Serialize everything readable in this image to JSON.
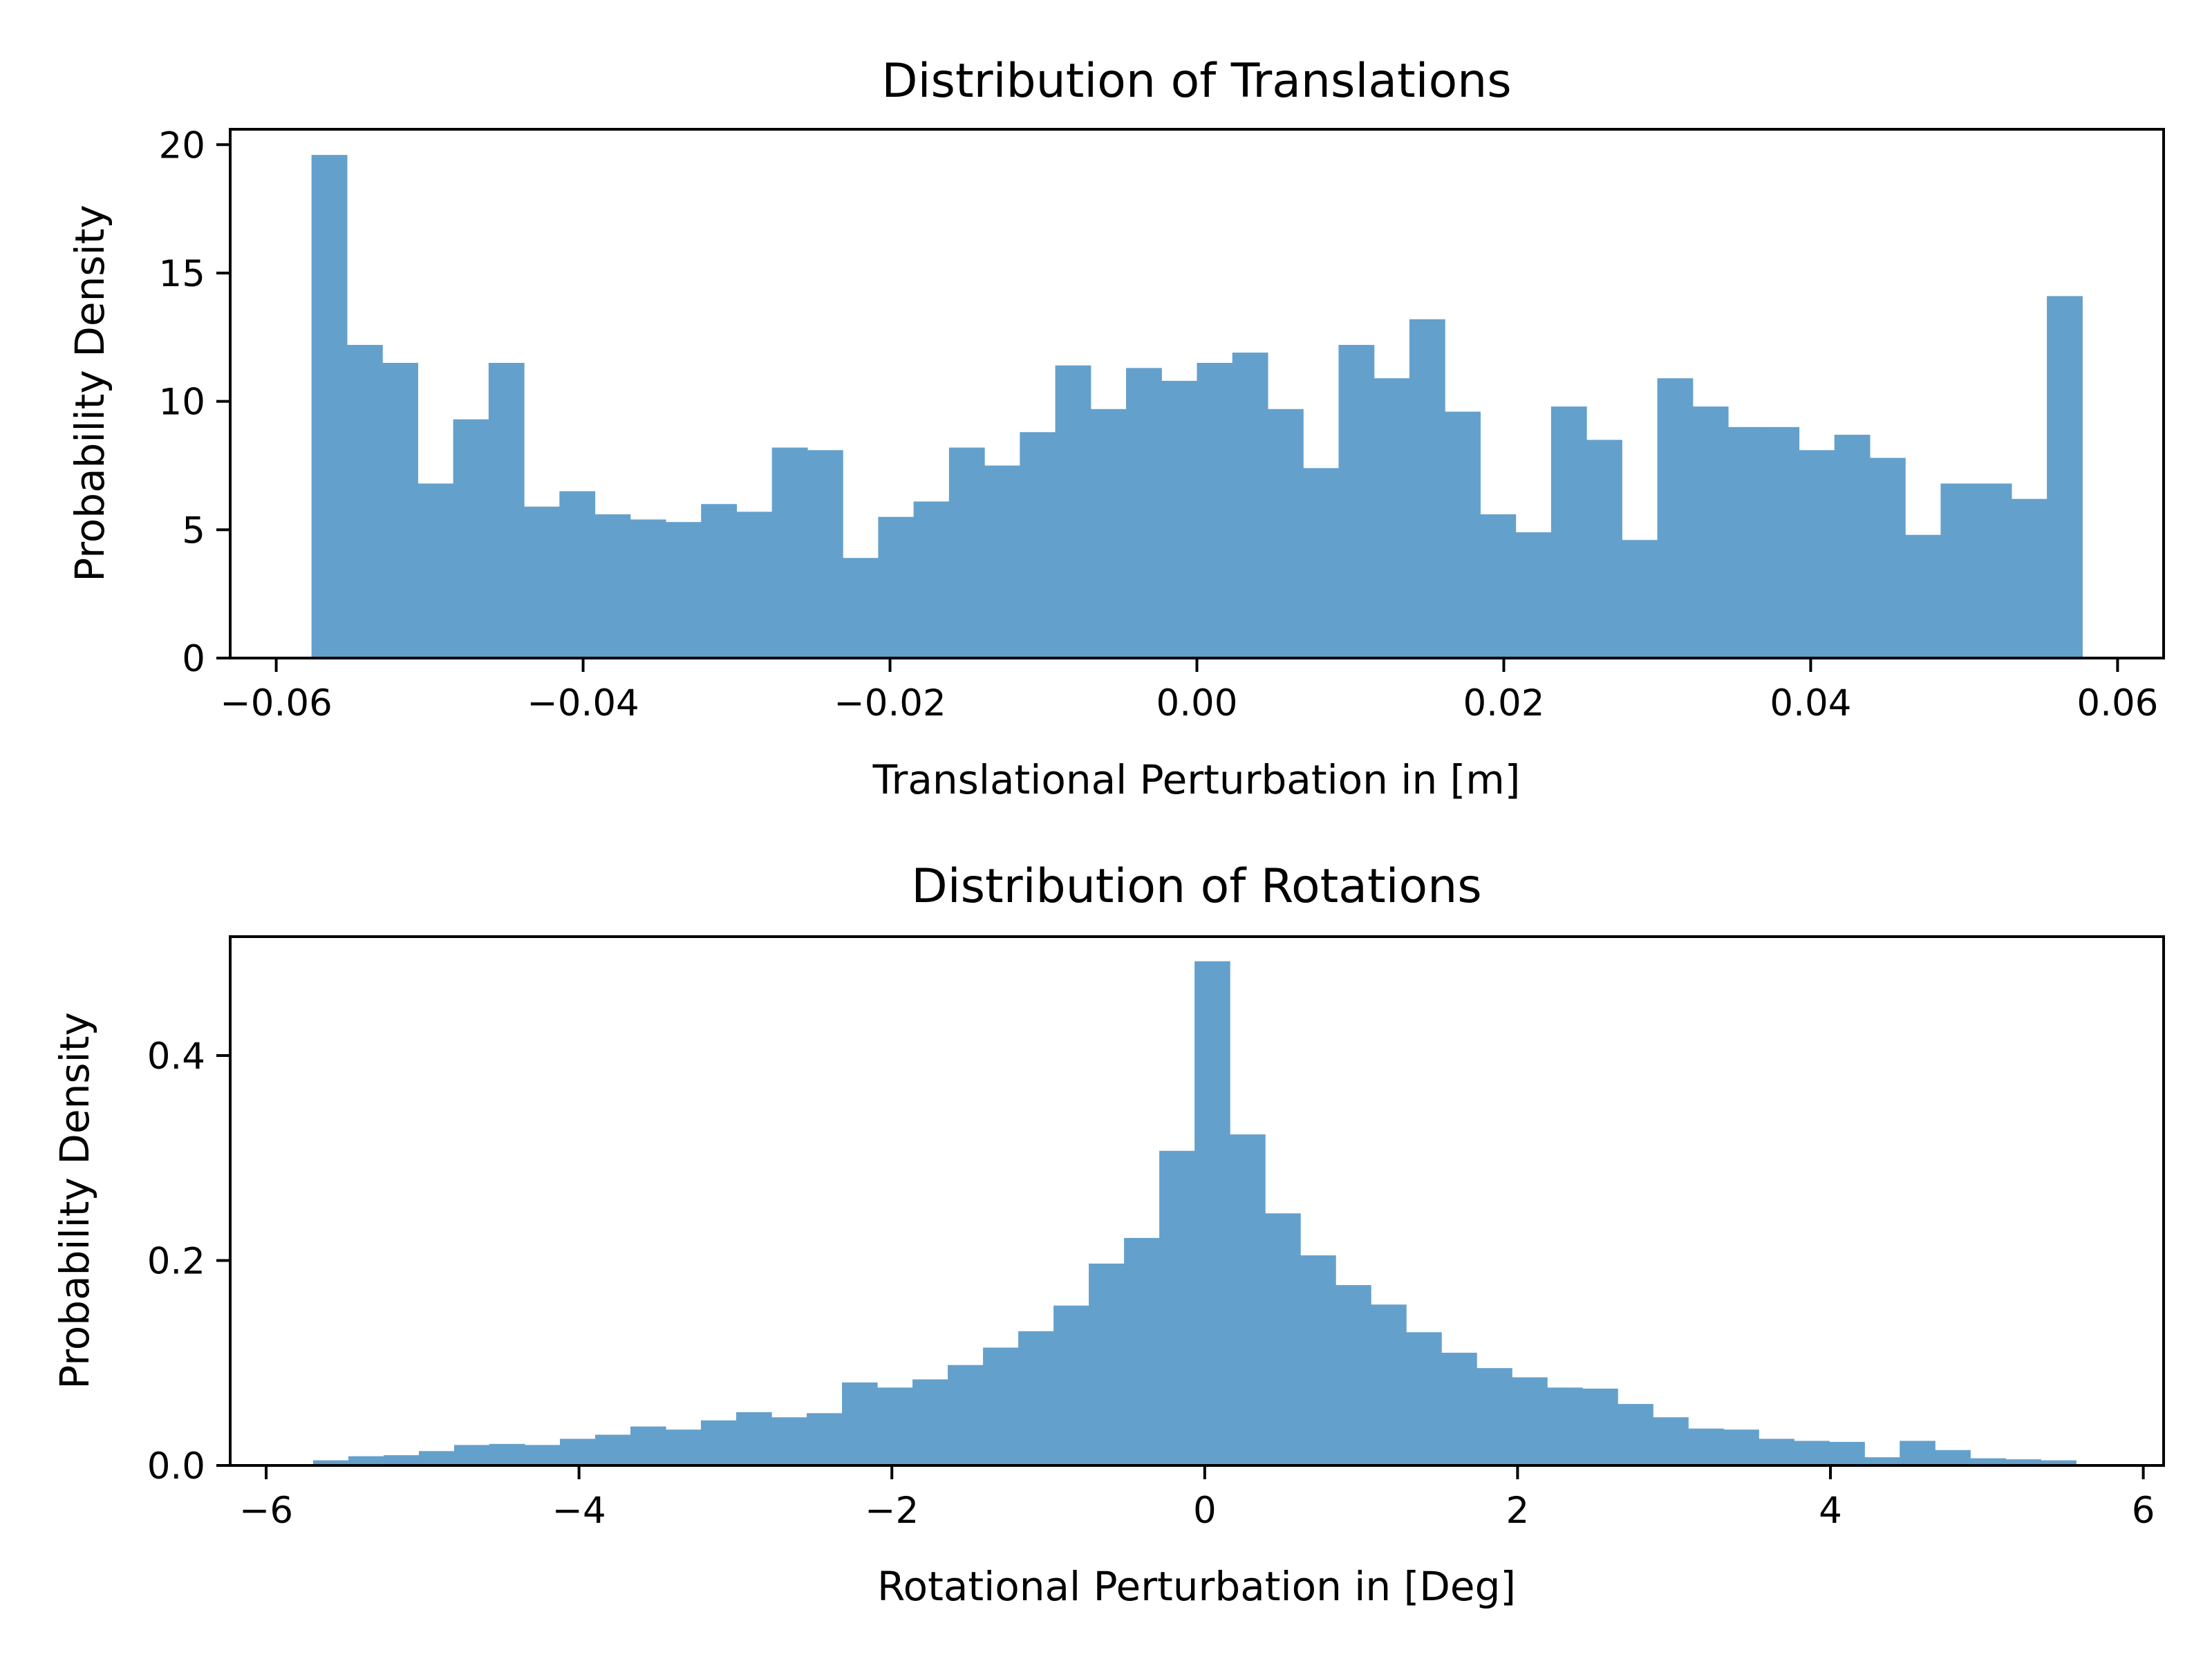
{
  "chart_data": [
    {
      "type": "bar",
      "title": "Distribution of Translations",
      "xlabel": "Translational Perturbation in [m]",
      "ylabel": "Probability Density",
      "xlim": [
        -0.063,
        0.063
      ],
      "ylim": [
        0,
        20.6
      ],
      "xticks": [
        -0.06,
        -0.04,
        -0.02,
        0.0,
        0.02,
        0.04,
        0.06
      ],
      "xtick_labels": [
        "−0.06",
        "−0.04",
        "−0.02",
        "0.00",
        "0.02",
        "0.04",
        "0.06"
      ],
      "yticks": [
        0,
        5,
        10,
        15,
        20
      ],
      "ytick_labels": [
        "0",
        "5",
        "10",
        "15",
        "20"
      ],
      "bin_start": -0.0577,
      "bin_end": 0.0577,
      "values": [
        19.6,
        12.2,
        11.5,
        6.8,
        9.3,
        11.5,
        5.9,
        6.5,
        5.6,
        5.4,
        5.3,
        6.0,
        5.7,
        8.2,
        8.1,
        3.9,
        5.5,
        6.1,
        8.2,
        7.5,
        8.8,
        11.4,
        9.7,
        11.3,
        10.8,
        11.5,
        11.9,
        9.7,
        7.4,
        12.2,
        10.9,
        13.2,
        9.6,
        5.6,
        4.9,
        9.8,
        8.5,
        4.6,
        10.9,
        9.8,
        9.0,
        9.0,
        8.1,
        8.7,
        7.8,
        4.8,
        6.8,
        6.8,
        6.2,
        14.1
      ],
      "color": "#64a0cc",
      "grid": false
    },
    {
      "type": "bar",
      "title": "Distribution of Rotations",
      "xlabel": "Rotational Perturbation in [Deg]",
      "ylabel": "Probability Density",
      "xlim": [
        -6.23,
        6.13
      ],
      "ylim": [
        0,
        0.516
      ],
      "xticks": [
        -6,
        -4,
        -2,
        0,
        2,
        4,
        6
      ],
      "xtick_labels": [
        "−6",
        "−4",
        "−2",
        "0",
        "2",
        "4",
        "6"
      ],
      "yticks": [
        0.0,
        0.2,
        0.4
      ],
      "ytick_labels": [
        "0.0",
        "0.2",
        "0.4"
      ],
      "bin_start": -5.7,
      "bin_end": 5.57,
      "values": [
        0.005,
        0.009,
        0.01,
        0.014,
        0.02,
        0.021,
        0.02,
        0.026,
        0.03,
        0.038,
        0.035,
        0.044,
        0.052,
        0.047,
        0.051,
        0.081,
        0.076,
        0.084,
        0.098,
        0.115,
        0.131,
        0.156,
        0.197,
        0.222,
        0.307,
        0.492,
        0.323,
        0.246,
        0.205,
        0.176,
        0.157,
        0.13,
        0.11,
        0.095,
        0.086,
        0.076,
        0.075,
        0.06,
        0.047,
        0.036,
        0.035,
        0.026,
        0.024,
        0.023,
        0.008,
        0.024,
        0.015,
        0.007,
        0.006,
        0.005
      ],
      "color": "#64a0cc",
      "grid": false
    }
  ]
}
